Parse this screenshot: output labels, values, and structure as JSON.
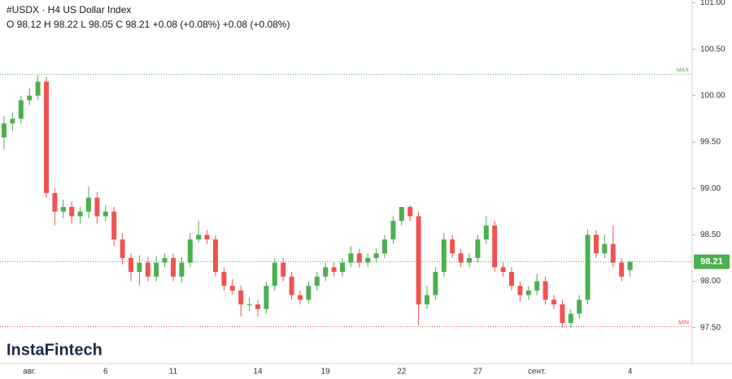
{
  "chart_data": {
    "type": "candlestick",
    "title": "#USDX · H4 US Dollar Index",
    "subtitle": "O 98.12 H 98.22 L 98.05 C 98.21 +0.08 (+0.08%) +0.08 (+0.08%)",
    "watermark": "InstaFintech",
    "up_color": "#4caf50",
    "down_color": "#ef5350",
    "grid": false,
    "categories": [
      null,
      null,
      null,
      "авг.",
      null,
      null,
      null,
      null,
      null,
      null,
      null,
      null,
      "6",
      null,
      null,
      null,
      null,
      null,
      null,
      null,
      "11",
      null,
      null,
      null,
      null,
      null,
      null,
      null,
      null,
      null,
      "14",
      null,
      null,
      null,
      null,
      null,
      null,
      null,
      "19",
      null,
      null,
      null,
      null,
      null,
      null,
      null,
      null,
      "22",
      null,
      null,
      null,
      null,
      null,
      null,
      null,
      null,
      "27",
      null,
      null,
      null,
      null,
      null,
      null,
      "сент.",
      null,
      null,
      null,
      null,
      null,
      null,
      null,
      null,
      null,
      null,
      "4"
    ],
    "open": [
      99.55,
      99.7,
      99.75,
      99.95,
      100.0,
      100.15,
      98.95,
      98.75,
      98.8,
      98.7,
      98.75,
      98.9,
      98.7,
      98.75,
      98.45,
      98.25,
      98.1,
      98.2,
      98.05,
      98.2,
      98.25,
      98.05,
      98.2,
      98.45,
      98.5,
      98.45,
      98.1,
      97.95,
      97.9,
      97.75,
      97.75,
      97.7,
      97.95,
      98.2,
      98.05,
      97.85,
      97.8,
      97.95,
      98.05,
      98.15,
      98.1,
      98.2,
      98.3,
      98.2,
      98.25,
      98.3,
      98.45,
      98.65,
      98.8,
      98.7,
      97.75,
      97.85,
      98.1,
      98.45,
      98.3,
      98.2,
      98.25,
      98.45,
      98.6,
      98.15,
      98.1,
      97.95,
      97.85,
      97.9,
      98.0,
      97.8,
      97.75,
      97.55,
      97.65,
      97.8,
      98.5,
      98.3,
      98.4,
      98.2,
      98.12
    ],
    "high": [
      99.78,
      99.82,
      100.0,
      100.08,
      100.22,
      100.2,
      99.0,
      98.88,
      98.86,
      98.8,
      99.02,
      98.96,
      98.82,
      98.8,
      98.52,
      98.3,
      98.28,
      98.26,
      98.27,
      98.3,
      98.3,
      98.26,
      98.52,
      98.65,
      98.55,
      98.5,
      98.15,
      98.02,
      97.95,
      97.82,
      97.8,
      98.0,
      98.25,
      98.25,
      98.1,
      97.9,
      98.0,
      98.1,
      98.2,
      98.2,
      98.25,
      98.38,
      98.35,
      98.3,
      98.35,
      98.5,
      98.7,
      98.8,
      98.82,
      98.75,
      97.95,
      98.15,
      98.52,
      98.5,
      98.35,
      98.3,
      98.5,
      98.7,
      98.65,
      98.2,
      98.15,
      98.0,
      97.95,
      98.08,
      98.05,
      97.85,
      97.8,
      97.7,
      97.85,
      98.56,
      98.55,
      98.5,
      98.6,
      98.25,
      98.22
    ],
    "low": [
      99.42,
      99.62,
      99.7,
      99.9,
      99.95,
      98.9,
      98.6,
      98.68,
      98.62,
      98.62,
      98.68,
      98.62,
      98.64,
      98.38,
      98.18,
      98.0,
      97.95,
      98.0,
      98.0,
      98.15,
      98.0,
      97.98,
      98.15,
      98.42,
      98.4,
      98.05,
      97.9,
      97.85,
      97.62,
      97.68,
      97.62,
      97.65,
      97.9,
      98.0,
      97.8,
      97.75,
      97.76,
      97.9,
      98.0,
      98.05,
      98.05,
      98.15,
      98.15,
      98.15,
      98.2,
      98.25,
      98.4,
      98.6,
      98.65,
      97.52,
      97.7,
      97.8,
      98.05,
      98.25,
      98.15,
      98.15,
      98.2,
      98.4,
      98.1,
      98.05,
      97.9,
      97.78,
      97.8,
      97.85,
      97.75,
      97.7,
      97.5,
      97.5,
      97.6,
      97.75,
      98.25,
      98.25,
      98.15,
      98.0,
      98.05
    ],
    "close": [
      99.7,
      99.75,
      99.95,
      100.0,
      100.15,
      98.95,
      98.75,
      98.8,
      98.7,
      98.75,
      98.9,
      98.7,
      98.75,
      98.45,
      98.25,
      98.1,
      98.2,
      98.05,
      98.2,
      98.25,
      98.05,
      98.2,
      98.45,
      98.5,
      98.45,
      98.1,
      97.95,
      97.9,
      97.75,
      97.75,
      97.7,
      97.95,
      98.2,
      98.05,
      97.85,
      97.8,
      97.95,
      98.05,
      98.15,
      98.1,
      98.2,
      98.3,
      98.2,
      98.25,
      98.3,
      98.45,
      98.65,
      98.8,
      98.7,
      97.75,
      97.85,
      98.1,
      98.45,
      98.3,
      98.2,
      98.25,
      98.45,
      98.6,
      98.15,
      98.1,
      97.95,
      97.85,
      97.9,
      98.0,
      97.8,
      97.75,
      97.55,
      97.65,
      97.8,
      98.5,
      98.3,
      98.4,
      98.2,
      98.05,
      98.21
    ],
    "ylim": [
      97.13,
      101.03
    ],
    "yticks": [
      {
        "value": 97.5,
        "label": "97.50"
      },
      {
        "value": 98,
        "label": "98.00"
      },
      {
        "value": 98.5,
        "label": "98.50"
      },
      {
        "value": 99,
        "label": "99.00"
      },
      {
        "value": 99.5,
        "label": "99.50"
      },
      {
        "value": 100,
        "label": "100.00"
      },
      {
        "value": 100.5,
        "label": "100.50"
      },
      {
        "value": 101,
        "label": "101.00"
      }
    ],
    "max_line": {
      "value": 100.23,
      "label": "MAX"
    },
    "min_line": {
      "value": 97.51,
      "label": "MIN"
    },
    "last_price": 98.21
  }
}
